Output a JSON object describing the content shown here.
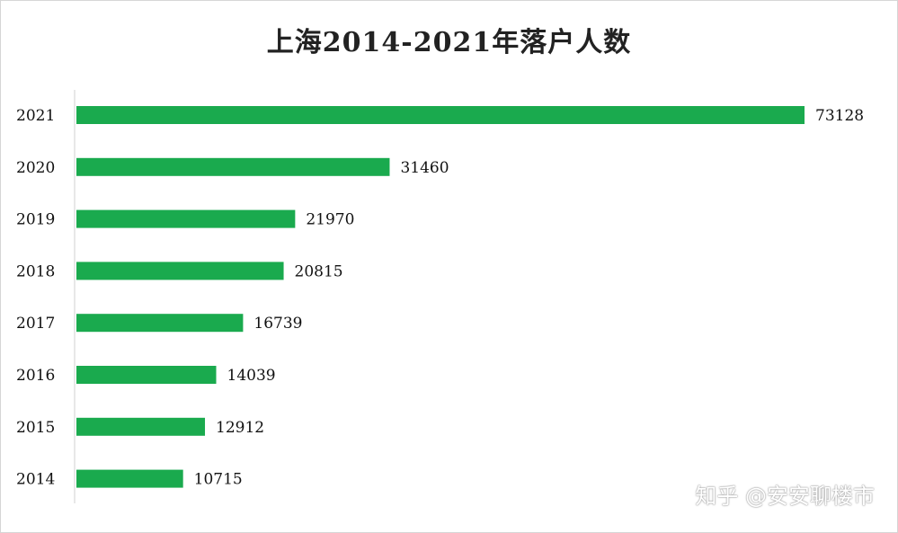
{
  "chart_data": {
    "type": "bar",
    "orientation": "horizontal",
    "title": "上海2014-2021年落户人数",
    "categories": [
      "2021",
      "2020",
      "2019",
      "2018",
      "2017",
      "2016",
      "2015",
      "2014"
    ],
    "values": [
      73128,
      31460,
      21970,
      20815,
      16739,
      14039,
      12912,
      10715
    ],
    "xlabel": "",
    "ylabel": "",
    "xlim": [
      0,
      73128
    ],
    "grid": false,
    "bar_color": "#1aaa4e",
    "data_labels": true
  },
  "watermark": "知乎 @安安聊楼市"
}
